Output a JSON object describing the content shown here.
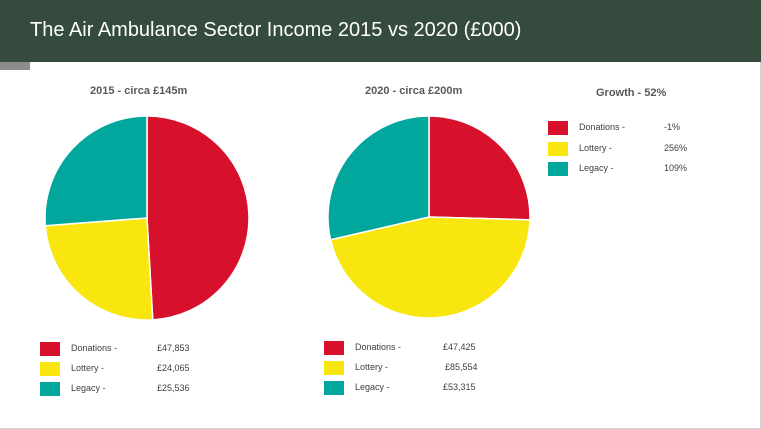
{
  "header": {
    "title": "The Air Ambulance Sector Income 2015 vs 2020  (£000)"
  },
  "colors": {
    "donations": "#d7102b",
    "lottery": "#f8e60e",
    "legacy": "#01a79d",
    "header_bg": "#344b3d"
  },
  "chart_data": [
    {
      "type": "pie",
      "title": "2015 - circa £145m",
      "categories": [
        "Donations -",
        "Lottery -",
        "Legacy -"
      ],
      "values": [
        47853,
        24065,
        25536
      ],
      "value_labels": [
        "£47,853",
        "£24,065",
        "£25,536"
      ]
    },
    {
      "type": "pie",
      "title": "2020 - circa £200m",
      "categories": [
        "Donations -",
        "Lottery -",
        "Legacy -"
      ],
      "values": [
        47425,
        85554,
        53315
      ],
      "value_labels": [
        "£47,425",
        "£85,554",
        "£53,315"
      ]
    },
    {
      "type": "table",
      "title": "Growth - 52%",
      "categories": [
        "Donations -",
        "Lottery -",
        "Legacy -"
      ],
      "value_labels": [
        "-1%",
        "256%",
        "109%"
      ]
    }
  ]
}
